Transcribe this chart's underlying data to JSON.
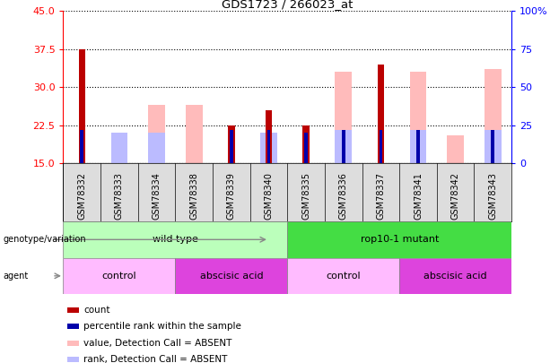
{
  "title": "GDS1723 / 266023_at",
  "samples": [
    "GSM78332",
    "GSM78333",
    "GSM78334",
    "GSM78338",
    "GSM78339",
    "GSM78340",
    "GSM78335",
    "GSM78336",
    "GSM78337",
    "GSM78341",
    "GSM78342",
    "GSM78343"
  ],
  "count": [
    37.5,
    0,
    0,
    0,
    22.5,
    25.5,
    22.5,
    0,
    34.5,
    0,
    0,
    0
  ],
  "percentile": [
    21.5,
    0,
    0,
    0,
    21.5,
    21.5,
    21.0,
    21.5,
    21.5,
    21.5,
    0,
    21.5
  ],
  "value_absent": [
    0,
    20.5,
    26.5,
    26.5,
    0,
    0,
    0,
    33.0,
    0,
    33.0,
    20.5,
    33.5
  ],
  "rank_absent": [
    0,
    21.0,
    21.0,
    0,
    0,
    21.0,
    0,
    21.5,
    0,
    21.5,
    0,
    21.5
  ],
  "ylim_left": [
    15,
    45
  ],
  "ylim_right": [
    0,
    100
  ],
  "yticks_left": [
    15,
    22.5,
    30,
    37.5,
    45
  ],
  "yticks_right": [
    0,
    25,
    50,
    75,
    100
  ],
  "color_count": "#bb0000",
  "color_percentile": "#0000aa",
  "color_value_absent": "#ffbbbb",
  "color_rank_absent": "#bbbbff",
  "genotype_groups": [
    {
      "label": "wild type",
      "start": 0,
      "end": 6,
      "color": "#bbffbb"
    },
    {
      "label": "rop10-1 mutant",
      "start": 6,
      "end": 12,
      "color": "#44dd44"
    }
  ],
  "agent_groups": [
    {
      "label": "control",
      "start": 0,
      "end": 3,
      "color": "#ffbbff"
    },
    {
      "label": "abscisic acid",
      "start": 3,
      "end": 6,
      "color": "#dd44dd"
    },
    {
      "label": "control",
      "start": 6,
      "end": 9,
      "color": "#ffbbff"
    },
    {
      "label": "abscisic acid",
      "start": 9,
      "end": 12,
      "color": "#dd44dd"
    }
  ],
  "legend_items": [
    {
      "label": "count",
      "color": "#bb0000"
    },
    {
      "label": "percentile rank within the sample",
      "color": "#0000aa"
    },
    {
      "label": "value, Detection Call = ABSENT",
      "color": "#ffbbbb"
    },
    {
      "label": "rank, Detection Call = ABSENT",
      "color": "#bbbbff"
    }
  ]
}
